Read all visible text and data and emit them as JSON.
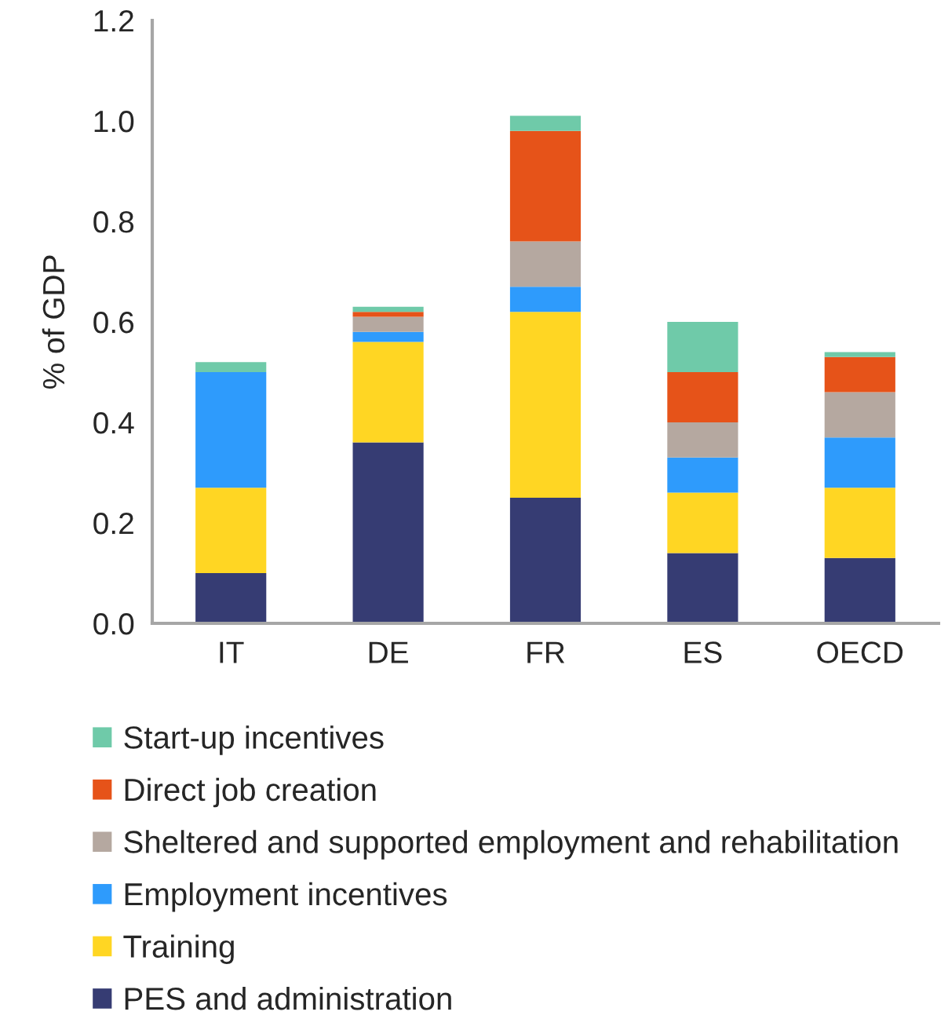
{
  "chart_data": {
    "type": "bar",
    "stacked": true,
    "ylabel": "% of GDP",
    "categories": [
      "IT",
      "DE",
      "FR",
      "ES",
      "OECD"
    ],
    "series": [
      {
        "name": "PES and administration",
        "color": "#363c73",
        "values": [
          0.1,
          0.36,
          0.25,
          0.14,
          0.13
        ]
      },
      {
        "name": "Training",
        "color": "#ffd623",
        "values": [
          0.17,
          0.2,
          0.37,
          0.12,
          0.14
        ]
      },
      {
        "name": "Employment incentives",
        "color": "#2e9bfc",
        "values": [
          0.23,
          0.02,
          0.05,
          0.07,
          0.1
        ]
      },
      {
        "name": "Sheltered and supported employment and rehabilitation",
        "color": "#b5a8a0",
        "values": [
          null,
          0.03,
          0.09,
          0.07,
          0.09
        ]
      },
      {
        "name": "Direct job creation",
        "color": "#e65319",
        "values": [
          null,
          0.01,
          0.22,
          0.1,
          0.07
        ]
      },
      {
        "name": "Start-up incentives",
        "color": "#6fcaa9",
        "values": [
          0.02,
          0.01,
          0.03,
          0.1,
          0.01
        ]
      }
    ],
    "ylim": [
      0,
      1.2
    ],
    "yticks": [
      {
        "value": 0,
        "label": "0.0"
      },
      {
        "value": 0.2,
        "label": "0.2"
      },
      {
        "value": 0.4,
        "label": "0.4"
      },
      {
        "value": 0.6,
        "label": "0.6"
      },
      {
        "value": 0.8,
        "label": "0.8"
      },
      {
        "value": 1.0,
        "label": "1.0"
      },
      {
        "value": 1.2,
        "label": "1.2"
      }
    ],
    "legend": "bottom"
  }
}
